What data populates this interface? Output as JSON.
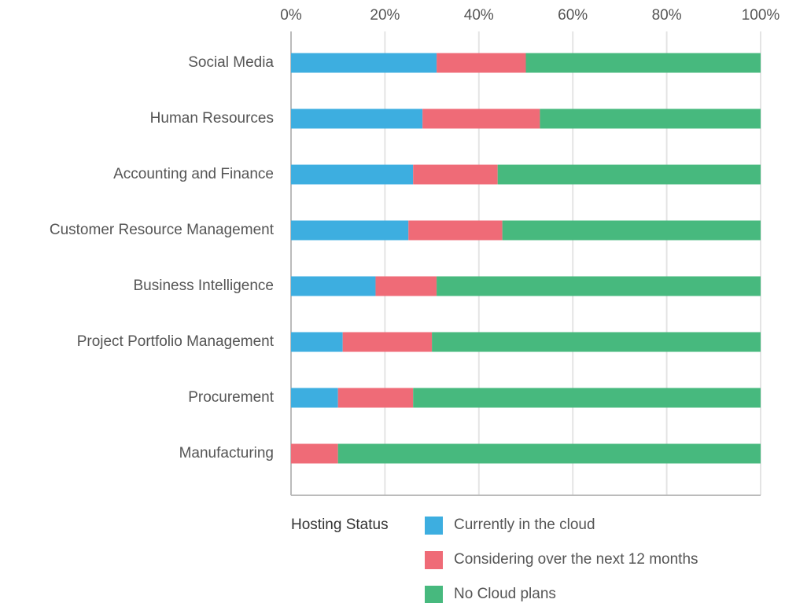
{
  "chart_data": {
    "type": "stacked_bar_horizontal",
    "categories": [
      "Social Media",
      "Human Resources",
      "Accounting and Finance",
      "Customer Resource Management",
      "Business Intelligence",
      "Project Portfolio Management",
      "Procurement",
      "Manufacturing"
    ],
    "series": [
      {
        "name": "Currently in the cloud",
        "color": "#3daee0",
        "values": [
          31,
          28,
          26,
          25,
          18,
          11,
          10,
          0
        ]
      },
      {
        "name": "Considering over the next 12 months",
        "color": "#ef6b77",
        "values": [
          19,
          25,
          18,
          20,
          13,
          19,
          16,
          10
        ]
      },
      {
        "name": "No Cloud plans",
        "color": "#47b97e",
        "values": [
          50,
          47,
          56,
          55,
          69,
          70,
          74,
          90
        ]
      }
    ],
    "xlim": [
      0,
      100
    ],
    "xticks": [
      {
        "value": 0,
        "label": "0%"
      },
      {
        "value": 20,
        "label": "20%"
      },
      {
        "value": 40,
        "label": "40%"
      },
      {
        "value": 60,
        "label": "60%"
      },
      {
        "value": 80,
        "label": "80%"
      },
      {
        "value": 100,
        "label": "100%"
      }
    ],
    "grid": true,
    "legend_title": "Hosting Status"
  }
}
